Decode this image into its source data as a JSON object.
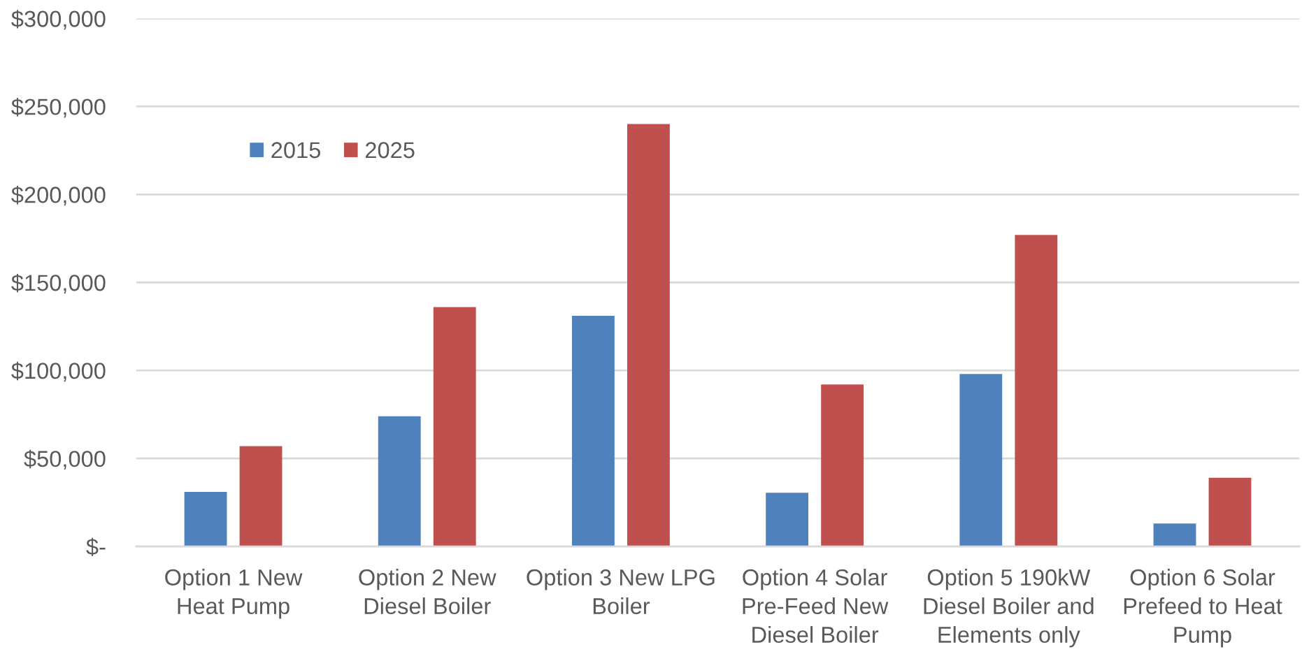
{
  "chart_data": {
    "type": "bar",
    "categories": [
      "Option 1 New Heat Pump",
      "Option 2 New Diesel Boiler",
      "Option 3 New LPG Boiler",
      "Option 4 Solar Pre-Feed New Diesel Boiler",
      "Option 5 190kW Diesel Boiler and Elements only",
      "Option 6 Solar Prefeed to Heat Pump"
    ],
    "series": [
      {
        "name": "2015",
        "color": "#4f81bd",
        "values": [
          31000,
          74000,
          131000,
          30500,
          98000,
          13000
        ]
      },
      {
        "name": "2025",
        "color": "#c0504d",
        "values": [
          57000,
          136000,
          240000,
          92000,
          177000,
          39000
        ]
      }
    ],
    "ylim": [
      0,
      300000
    ],
    "yticks": [
      {
        "value": 0,
        "label": "$-"
      },
      {
        "value": 50000,
        "label": "$50,000"
      },
      {
        "value": 100000,
        "label": "$100,000"
      },
      {
        "value": 150000,
        "label": "$150,000"
      },
      {
        "value": 200000,
        "label": "$200,000"
      },
      {
        "value": 250000,
        "label": "$250,000"
      },
      {
        "value": 300000,
        "label": "$300,000"
      }
    ],
    "grid": "y",
    "legend": "top left"
  }
}
